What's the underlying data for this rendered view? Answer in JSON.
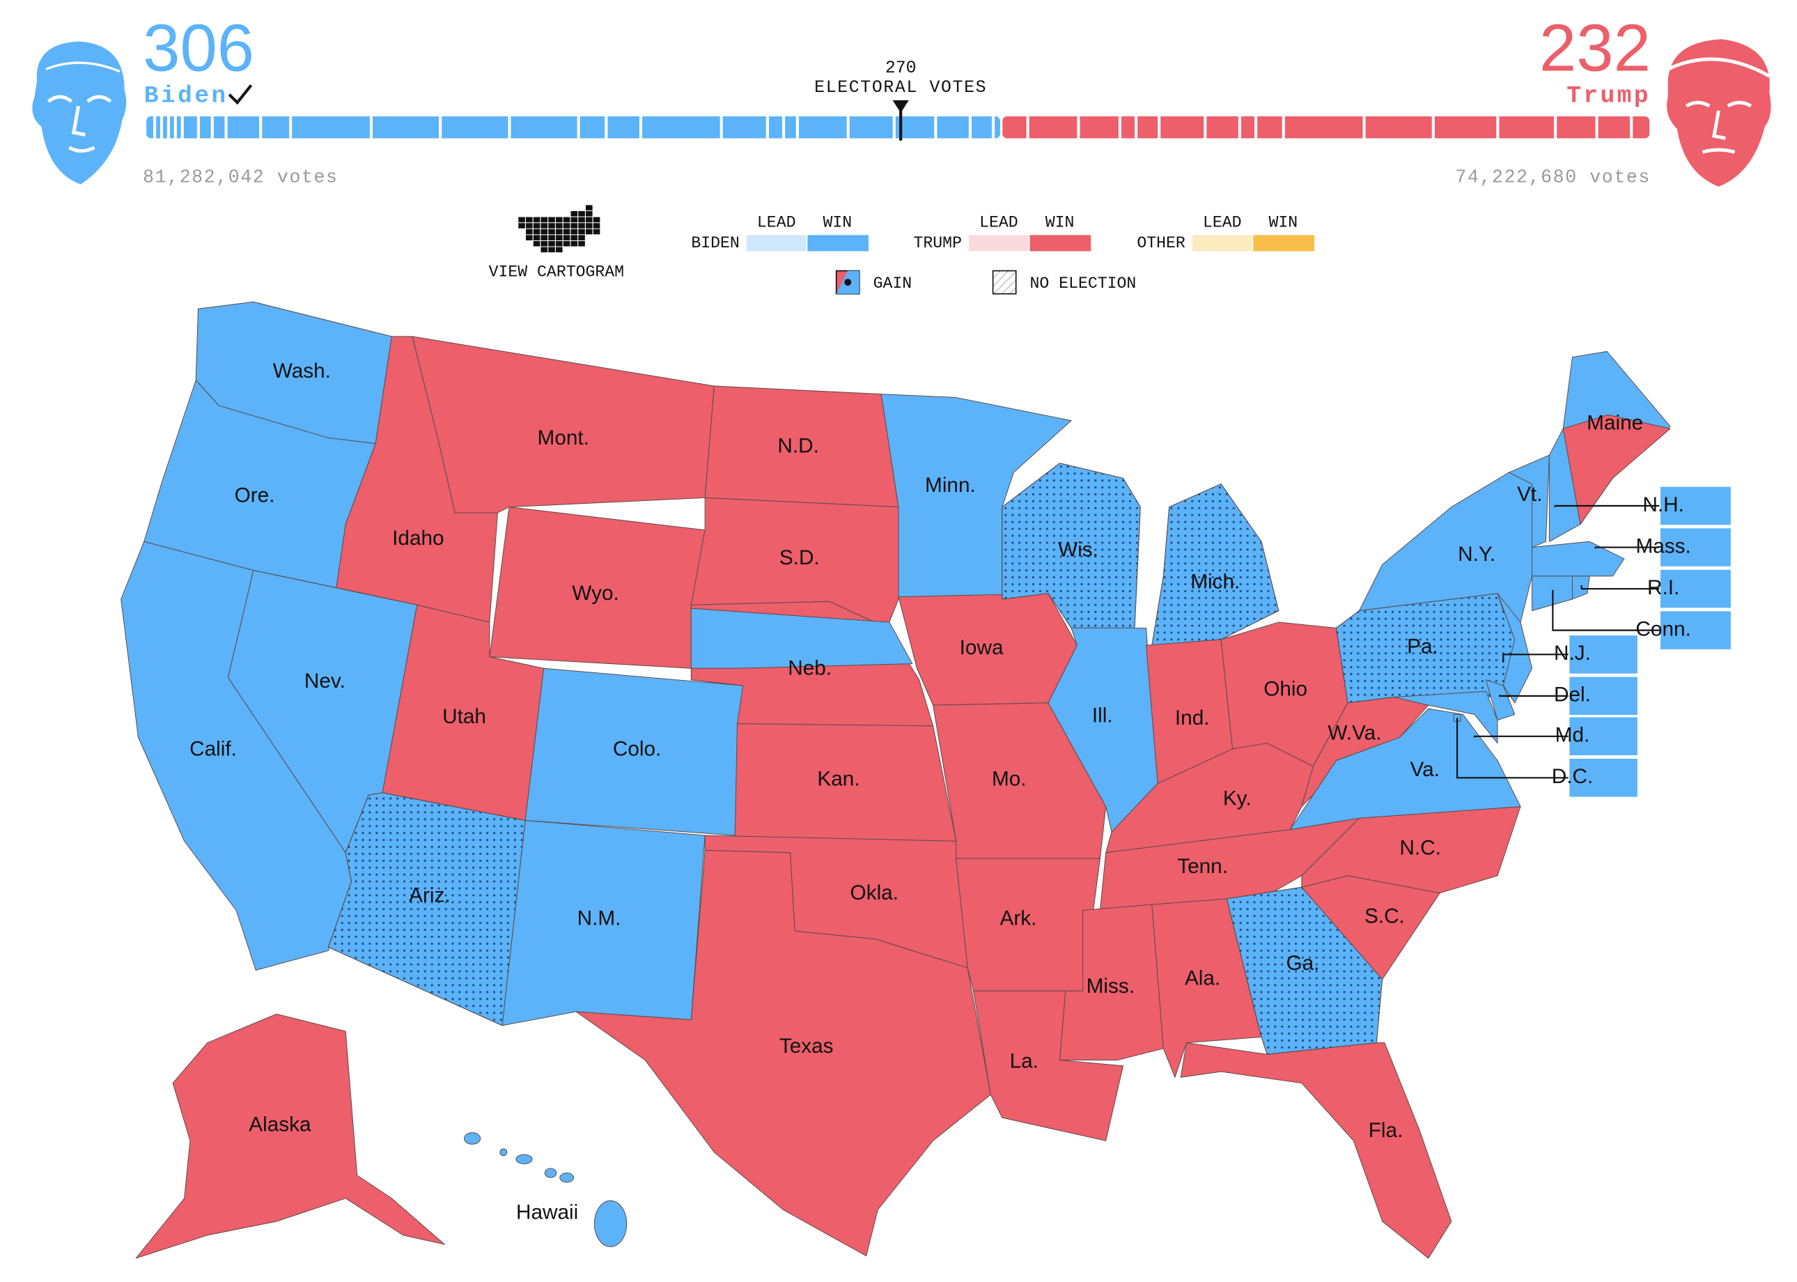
{
  "header": {
    "biden": {
      "electoral_votes": 306,
      "name": "Biden",
      "popular_votes": "81,282,042 votes",
      "color": "#5cb3f9"
    },
    "trump": {
      "electoral_votes": 232,
      "name": "Trump",
      "popular_votes": "74,222,680 votes",
      "color": "#ec5f6b"
    },
    "threshold": {
      "value": 270,
      "label": "ELECTORAL VOTES"
    }
  },
  "view_cartogram": "VIEW CARTOGRAM",
  "legend": {
    "columns": [
      "LEAD",
      "WIN"
    ],
    "rows": [
      {
        "name": "BIDEN",
        "lead_color": "#cfe8fc",
        "win_color": "#5cb3f9"
      },
      {
        "name": "TRUMP",
        "lead_color": "#fbdadd",
        "win_color": "#ec5f6b"
      },
      {
        "name": "OTHER",
        "lead_color": "#fdebc0",
        "win_color": "#f7be4a"
      }
    ],
    "gain": "GAIN",
    "no_election": "NO ELECTION"
  },
  "states": [
    {
      "label": "Wash.",
      "color": "#5cb3f9",
      "gain": false
    },
    {
      "label": "Ore.",
      "color": "#5cb3f9",
      "gain": false
    },
    {
      "label": "Calif.",
      "color": "#5cb3f9",
      "gain": false
    },
    {
      "label": "Nev.",
      "color": "#5cb3f9",
      "gain": false
    },
    {
      "label": "Idaho",
      "color": "#ec5f6b",
      "gain": false
    },
    {
      "label": "Mont.",
      "color": "#ec5f6b",
      "gain": false
    },
    {
      "label": "Wyo.",
      "color": "#ec5f6b",
      "gain": false
    },
    {
      "label": "Utah",
      "color": "#ec5f6b",
      "gain": false
    },
    {
      "label": "Colo.",
      "color": "#5cb3f9",
      "gain": false
    },
    {
      "label": "Ariz.",
      "color": "#5cb3f9",
      "gain": true
    },
    {
      "label": "N.M.",
      "color": "#5cb3f9",
      "gain": false
    },
    {
      "label": "N.D.",
      "color": "#ec5f6b",
      "gain": false
    },
    {
      "label": "S.D.",
      "color": "#ec5f6b",
      "gain": false
    },
    {
      "label": "Neb.",
      "color": "#ec5f6b",
      "gain": false
    },
    {
      "label": "Kan.",
      "color": "#ec5f6b",
      "gain": false
    },
    {
      "label": "Okla.",
      "color": "#ec5f6b",
      "gain": false
    },
    {
      "label": "Texas",
      "color": "#ec5f6b",
      "gain": false
    },
    {
      "label": "Minn.",
      "color": "#5cb3f9",
      "gain": false
    },
    {
      "label": "Iowa",
      "color": "#ec5f6b",
      "gain": false
    },
    {
      "label": "Mo.",
      "color": "#ec5f6b",
      "gain": false
    },
    {
      "label": "Ark.",
      "color": "#ec5f6b",
      "gain": false
    },
    {
      "label": "La.",
      "color": "#ec5f6b",
      "gain": false
    },
    {
      "label": "Wis.",
      "color": "#5cb3f9",
      "gain": true
    },
    {
      "label": "Ill.",
      "color": "#5cb3f9",
      "gain": false
    },
    {
      "label": "Mich.",
      "color": "#5cb3f9",
      "gain": true
    },
    {
      "label": "Ind.",
      "color": "#ec5f6b",
      "gain": false
    },
    {
      "label": "Ohio",
      "color": "#ec5f6b",
      "gain": false
    },
    {
      "label": "Ky.",
      "color": "#ec5f6b",
      "gain": false
    },
    {
      "label": "Tenn.",
      "color": "#ec5f6b",
      "gain": false
    },
    {
      "label": "Miss.",
      "color": "#ec5f6b",
      "gain": false
    },
    {
      "label": "Ala.",
      "color": "#ec5f6b",
      "gain": false
    },
    {
      "label": "Ga.",
      "color": "#5cb3f9",
      "gain": true
    },
    {
      "label": "Fla.",
      "color": "#ec5f6b",
      "gain": false
    },
    {
      "label": "S.C.",
      "color": "#ec5f6b",
      "gain": false
    },
    {
      "label": "N.C.",
      "color": "#ec5f6b",
      "gain": false
    },
    {
      "label": "Va.",
      "color": "#5cb3f9",
      "gain": false
    },
    {
      "label": "W.Va.",
      "color": "#ec5f6b",
      "gain": false
    },
    {
      "label": "Pa.",
      "color": "#5cb3f9",
      "gain": true
    },
    {
      "label": "N.Y.",
      "color": "#5cb3f9",
      "gain": false
    },
    {
      "label": "Vt.",
      "color": "#5cb3f9",
      "gain": false
    },
    {
      "label": "Maine",
      "color": "#5cb3f9",
      "gain": false
    },
    {
      "label": "Alaska",
      "color": "#ec5f6b",
      "gain": false
    },
    {
      "label": "Hawaii",
      "color": "#5cb3f9",
      "gain": false
    },
    {
      "label": "N.H.",
      "color": "#5cb3f9",
      "gain": false
    },
    {
      "label": "Mass.",
      "color": "#5cb3f9",
      "gain": false
    },
    {
      "label": "R.I.",
      "color": "#5cb3f9",
      "gain": false
    },
    {
      "label": "Conn.",
      "color": "#5cb3f9",
      "gain": false
    },
    {
      "label": "N.J.",
      "color": "#5cb3f9",
      "gain": false
    },
    {
      "label": "Del.",
      "color": "#5cb3f9",
      "gain": false
    },
    {
      "label": "Md.",
      "color": "#5cb3f9",
      "gain": false
    },
    {
      "label": "D.C.",
      "color": "#5cb3f9",
      "gain": false
    }
  ]
}
